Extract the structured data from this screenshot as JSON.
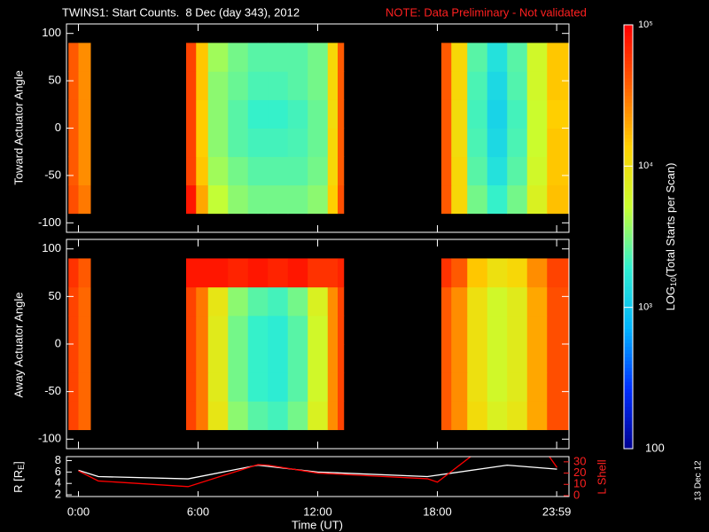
{
  "title": "TWINS1: Start Counts.  8 Dec (day 343), 2012",
  "note": "NOTE: Data Preliminary - Not validated",
  "date_stamp": "13 Dec 12",
  "chart_data": [
    {
      "type": "heatmap",
      "ylabel": "Toward Actuator Angle",
      "xlim": [
        -0.6,
        24.6
      ],
      "ylim": [
        -110,
        110
      ],
      "yticks": [
        -100,
        -50,
        0,
        50,
        100
      ],
      "x": [
        -0.5,
        0,
        0.6,
        5.4,
        5.9,
        6.5,
        7.5,
        8.5,
        9.5,
        10.5,
        11.5,
        12.5,
        13.0,
        13.3,
        18.2,
        18.7,
        19.5,
        20.5,
        21.5,
        22.5,
        23.5,
        24.6
      ],
      "y": [
        -90,
        -60,
        -30,
        0,
        30,
        60,
        90
      ],
      "z": [
        [
          45000,
          30000,
          null,
          80000,
          20000,
          5000,
          3500,
          3000,
          3000,
          3000,
          3500,
          14000,
          45000,
          null,
          40000,
          12000,
          3000,
          2000,
          3000,
          7000,
          16000
        ],
        [
          40000,
          25000,
          null,
          50000,
          15000,
          4000,
          3000,
          2500,
          2500,
          2500,
          3000,
          12000,
          40000,
          null,
          40000,
          12000,
          2500,
          1500,
          2500,
          6000,
          15000
        ],
        [
          40000,
          25000,
          null,
          50000,
          14000,
          3500,
          2500,
          2200,
          2200,
          2300,
          2800,
          12000,
          40000,
          null,
          40000,
          11000,
          2300,
          1300,
          2300,
          5500,
          15000
        ],
        [
          40000,
          25000,
          null,
          50000,
          14000,
          3500,
          2500,
          2000,
          2000,
          2200,
          2800,
          11000,
          40000,
          null,
          40000,
          11000,
          2200,
          1200,
          2200,
          5500,
          14000
        ],
        [
          40000,
          25000,
          null,
          50000,
          15000,
          3500,
          2800,
          2300,
          2300,
          2500,
          3000,
          12000,
          40000,
          null,
          40000,
          12000,
          2300,
          1300,
          2400,
          6000,
          15000
        ],
        [
          40000,
          25000,
          null,
          50000,
          15000,
          4000,
          3000,
          2500,
          2500,
          2500,
          3000,
          12000,
          40000,
          null,
          40000,
          12000,
          2500,
          1500,
          2500,
          6000,
          15000
        ]
      ]
    },
    {
      "type": "heatmap",
      "ylabel": "Away Actuator Angle",
      "xlim": [
        -0.6,
        24.6
      ],
      "ylim": [
        -110,
        110
      ],
      "yticks": [
        -100,
        -50,
        0,
        50,
        100
      ],
      "x": [
        -0.5,
        0,
        0.6,
        5.4,
        5.9,
        6.5,
        7.5,
        8.5,
        9.5,
        10.5,
        11.5,
        12.5,
        13.0,
        13.3,
        18.2,
        18.7,
        19.5,
        20.5,
        21.5,
        22.5,
        23.5,
        24.6
      ],
      "y": [
        -90,
        -60,
        -30,
        0,
        30,
        60,
        90
      ],
      "z": [
        [
          50000,
          35000,
          null,
          50000,
          30000,
          9000,
          3500,
          2500,
          2200,
          3000,
          7000,
          25000,
          50000,
          null,
          40000,
          25000,
          11000,
          7000,
          9000,
          20000,
          45000
        ],
        [
          50000,
          35000,
          null,
          50000,
          30000,
          8000,
          3000,
          2000,
          1800,
          2500,
          6000,
          25000,
          50000,
          null,
          40000,
          25000,
          10000,
          6000,
          8000,
          20000,
          45000
        ],
        [
          50000,
          35000,
          null,
          50000,
          30000,
          8000,
          3000,
          2000,
          1800,
          2500,
          6000,
          25000,
          50000,
          null,
          40000,
          25000,
          10000,
          6000,
          8000,
          20000,
          45000
        ],
        [
          50000,
          35000,
          null,
          50000,
          30000,
          8000,
          3000,
          2000,
          1800,
          2500,
          6000,
          25000,
          50000,
          null,
          40000,
          25000,
          10000,
          6000,
          8000,
          20000,
          45000
        ],
        [
          50000,
          35000,
          null,
          50000,
          30000,
          9000,
          3500,
          2500,
          2200,
          3000,
          7000,
          25000,
          50000,
          null,
          40000,
          25000,
          10000,
          6000,
          8000,
          20000,
          45000
        ],
        [
          60000,
          40000,
          null,
          80000,
          80000,
          80000,
          70000,
          80000,
          70000,
          80000,
          60000,
          60000,
          70000,
          null,
          60000,
          40000,
          15000,
          10000,
          12000,
          25000,
          50000
        ]
      ]
    },
    {
      "type": "line",
      "xlabel": "Time (UT)",
      "ylabel": [
        "R [R",
        "E",
        "]"
      ],
      "y2label": "L Shell",
      "xlim": [
        -0.6,
        24.6
      ],
      "xticks": [
        {
          "value": 0,
          "label": "0:00"
        },
        {
          "value": 6,
          "label": "6:00"
        },
        {
          "value": 12,
          "label": "12:00"
        },
        {
          "value": 18,
          "label": "18:00"
        },
        {
          "value": 23.983,
          "label": "23:59"
        }
      ],
      "ylim": [
        1.7,
        8.7
      ],
      "yticks": [
        2,
        4,
        6,
        8
      ],
      "y2lim": [
        -0.8,
        34.6
      ],
      "y2ticks": [
        0,
        10,
        20,
        30
      ],
      "series": [
        {
          "color": "#ffffff",
          "x": [
            0,
            1,
            5.5,
            9,
            12,
            17.5,
            21.5,
            24
          ],
          "values": [
            6.3,
            5.2,
            4.8,
            7.2,
            6.0,
            5.2,
            7.2,
            6.5
          ]
        },
        {
          "color": "#ff0000",
          "axis": "y2",
          "x": [
            0,
            1,
            5.5,
            9,
            9.5,
            12,
            17.5,
            18,
            19.7,
            23.6,
            24
          ],
          "values": [
            22,
            13,
            8,
            27.5,
            27,
            20,
            15,
            12,
            35,
            35,
            25
          ]
        }
      ]
    },
    {
      "type": "colorbar",
      "label": [
        "LOG",
        "10",
        "(Total Starts per Scan)"
      ],
      "log": true,
      "zlim": [
        100,
        100000
      ],
      "ticks": [
        {
          "value": 100000,
          "label": "10⁵"
        },
        {
          "value": 10000,
          "label": "10⁴"
        },
        {
          "value": 1000,
          "label": "10³"
        },
        100
      ],
      "colors": [
        "#000090",
        "#0030ff",
        "#00b4ff",
        "#30f0d0",
        "#c8ff30",
        "#ffd000",
        "#ff6000",
        "#ff0000"
      ]
    }
  ]
}
